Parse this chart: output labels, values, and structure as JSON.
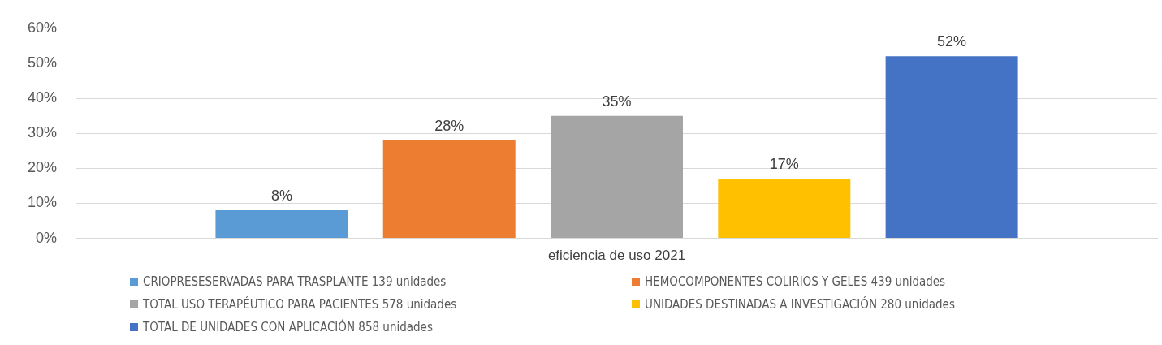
{
  "chart_data": {
    "type": "bar",
    "categories": [
      "eficiencia de uso 2021"
    ],
    "series": [
      {
        "name": "CRIOPRESESERVADAS PARA TRASPLANTE 139 unidades",
        "color": "#5b9bd5",
        "values": [
          8
        ],
        "value_labels": [
          "8%"
        ]
      },
      {
        "name": "HEMOCOMPONENTES COLIRIOS Y GELES 439 unidades",
        "color": "#ed7d31",
        "values": [
          28
        ],
        "value_labels": [
          "28%"
        ]
      },
      {
        "name": "TOTAL USO TERAPÉUTICO PARA PACIENTES 578 unidades",
        "color": "#a5a5a5",
        "values": [
          35
        ],
        "value_labels": [
          "35%"
        ]
      },
      {
        "name": "UNIDADES DESTINADAS A INVESTIGACIÓN 280 unidades",
        "color": "#ffc000",
        "values": [
          17
        ],
        "value_labels": [
          "17%"
        ]
      },
      {
        "name": "TOTAL DE UNIDADES CON APLICACIÓN 858 unidades",
        "color": "#4472c4",
        "values": [
          52
        ],
        "value_labels": [
          "52%"
        ]
      }
    ],
    "ylim": [
      0,
      60
    ],
    "yticks": [
      {
        "value": 0,
        "label": "0%"
      },
      {
        "value": 10,
        "label": "10%"
      },
      {
        "value": 20,
        "label": "20%"
      },
      {
        "value": 30,
        "label": "30%"
      },
      {
        "value": 40,
        "label": "40%"
      },
      {
        "value": 50,
        "label": "50%"
      },
      {
        "value": 60,
        "label": "60%"
      }
    ],
    "grid": "y",
    "legend": "bottom"
  }
}
